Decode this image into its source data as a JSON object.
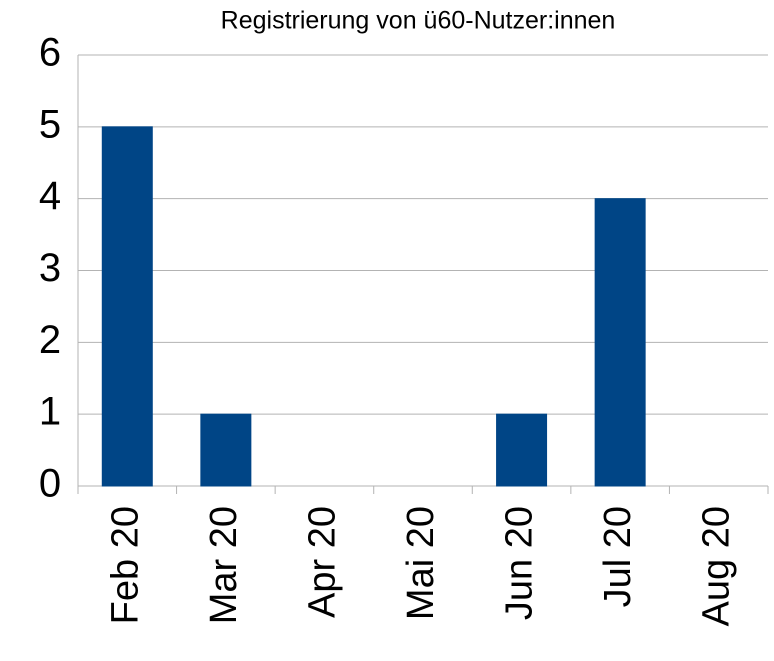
{
  "chart_data": {
    "type": "bar",
    "title": "Registrierung von ü60-Nutzer:innen",
    "categories": [
      "Feb 20",
      "Mar 20",
      "Apr 20",
      "Mai 20",
      "Jun 20",
      "Jul 20",
      "Aug 20"
    ],
    "values": [
      5,
      1,
      0,
      0,
      1,
      4,
      0
    ],
    "color": "#004586",
    "ylim": [
      0,
      6
    ],
    "yticks": [
      0,
      1,
      2,
      3,
      4,
      5,
      6
    ],
    "grid": true
  }
}
